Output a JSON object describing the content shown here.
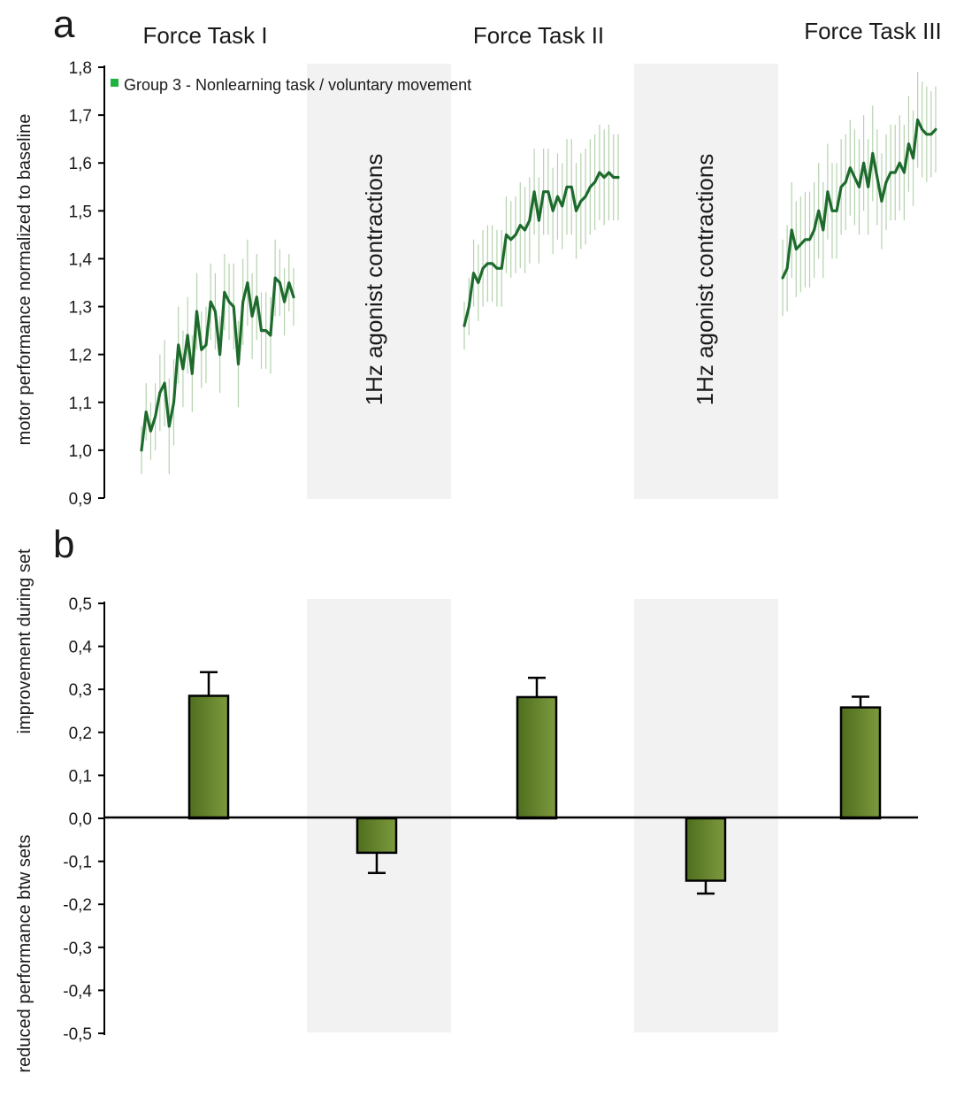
{
  "panel_a": {
    "letter": "a",
    "task_titles": [
      "Force Task I",
      "Force Task II",
      "Force Task III"
    ],
    "rest_labels": [
      "1Hz agonist contractions",
      "1Hz agonist contractions"
    ],
    "ylabel": "motor performance normalized to baseline",
    "legend_label": "Group 3 - Nonlearning task / voluntary movement"
  },
  "panel_b": {
    "letter": "b",
    "ylabel_top": "improvement during set",
    "ylabel_bottom": "reduced performance btw sets"
  },
  "colors": {
    "line": "#1d6b2c",
    "error_bars": "#b5d2ae",
    "legend_marker": "#1db33e",
    "rest_shade": "#f2f2f2",
    "bar_dark": "#4f6e1e",
    "bar_light": "#7d9a3e",
    "axis": "#000000"
  },
  "chart_data": [
    {
      "type": "line",
      "ylabel": "motor performance normalized to baseline",
      "ylim": [
        0.9,
        1.8
      ],
      "yticks": [
        "0,9",
        "1,0",
        "1,1",
        "1,2",
        "1,3",
        "1,4",
        "1,5",
        "1,6",
        "1,7",
        "1,8"
      ],
      "legend": "top-left",
      "series": [
        {
          "name": "Group 3 - Nonlearning task / voluntary movement",
          "segments": [
            {
              "label": "Force Task I",
              "values": [
                1.0,
                1.08,
                1.04,
                1.07,
                1.12,
                1.14,
                1.05,
                1.1,
                1.22,
                1.17,
                1.24,
                1.16,
                1.29,
                1.21,
                1.22,
                1.31,
                1.29,
                1.2,
                1.33,
                1.31,
                1.3,
                1.18,
                1.31,
                1.35,
                1.28,
                1.32,
                1.25,
                1.25,
                1.24,
                1.36,
                1.35,
                1.31,
                1.35,
                1.32
              ],
              "error": [
                0.05,
                0.06,
                0.06,
                0.07,
                0.08,
                0.09,
                0.1,
                0.09,
                0.08,
                0.08,
                0.08,
                0.08,
                0.08,
                0.08,
                0.08,
                0.08,
                0.08,
                0.08,
                0.08,
                0.08,
                0.09,
                0.09,
                0.09,
                0.09,
                0.09,
                0.09,
                0.08,
                0.08,
                0.08,
                0.08,
                0.07,
                0.07,
                0.06,
                0.06
              ]
            },
            {
              "label": "Force Task II",
              "values": [
                1.26,
                1.3,
                1.37,
                1.35,
                1.38,
                1.39,
                1.39,
                1.38,
                1.38,
                1.45,
                1.44,
                1.45,
                1.47,
                1.46,
                1.48,
                1.54,
                1.48,
                1.54,
                1.54,
                1.5,
                1.53,
                1.51,
                1.55,
                1.55,
                1.5,
                1.52,
                1.53,
                1.55,
                1.56,
                1.58,
                1.57,
                1.58,
                1.57,
                1.57
              ],
              "error": [
                0.05,
                0.06,
                0.07,
                0.08,
                0.08,
                0.08,
                0.08,
                0.08,
                0.08,
                0.08,
                0.08,
                0.08,
                0.09,
                0.09,
                0.09,
                0.09,
                0.09,
                0.09,
                0.09,
                0.09,
                0.09,
                0.09,
                0.1,
                0.1,
                0.1,
                0.1,
                0.1,
                0.1,
                0.1,
                0.1,
                0.1,
                0.1,
                0.09,
                0.09
              ]
            },
            {
              "label": "Force Task III",
              "values": [
                1.36,
                1.38,
                1.46,
                1.42,
                1.43,
                1.44,
                1.44,
                1.46,
                1.5,
                1.46,
                1.54,
                1.5,
                1.5,
                1.55,
                1.56,
                1.59,
                1.57,
                1.55,
                1.6,
                1.55,
                1.62,
                1.57,
                1.52,
                1.56,
                1.58,
                1.58,
                1.6,
                1.58,
                1.64,
                1.61,
                1.69,
                1.67,
                1.66,
                1.66,
                1.67
              ],
              "error": [
                0.08,
                0.09,
                0.1,
                0.1,
                0.1,
                0.1,
                0.1,
                0.1,
                0.1,
                0.1,
                0.1,
                0.1,
                0.1,
                0.1,
                0.1,
                0.1,
                0.1,
                0.1,
                0.1,
                0.1,
                0.1,
                0.1,
                0.1,
                0.1,
                0.1,
                0.1,
                0.1,
                0.1,
                0.1,
                0.1,
                0.1,
                0.1,
                0.1,
                0.09,
                0.09
              ]
            }
          ]
        }
      ]
    },
    {
      "type": "bar",
      "ylim": [
        -0.5,
        0.5
      ],
      "yticks": [
        "0,5",
        "0,4",
        "0,3",
        "0,2",
        "0,1",
        "0,0",
        "-0,1",
        "-0,2",
        "-0,3",
        "-0,4",
        "-0,5"
      ],
      "values": [
        0.285,
        -0.08,
        0.282,
        -0.145,
        0.258
      ],
      "errors": [
        0.055,
        0.047,
        0.045,
        0.03,
        0.025
      ]
    }
  ]
}
